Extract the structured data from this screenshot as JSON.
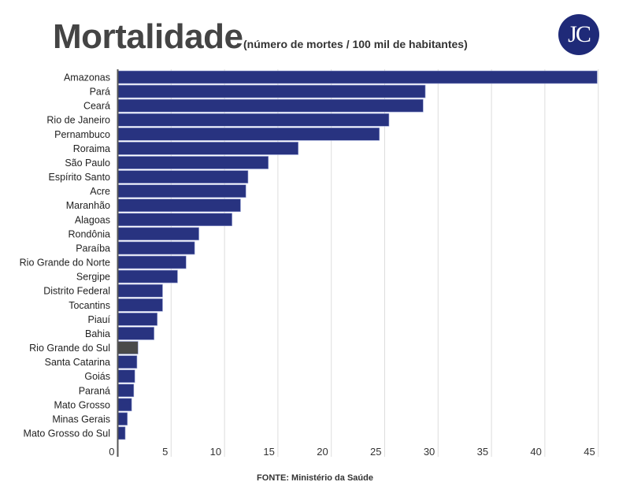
{
  "chart_data": {
    "type": "bar",
    "orientation": "horizontal",
    "title": "Mortalidade",
    "subtitle": "(número de mortes / 100 mil de habitantes)",
    "source": "FONTE: Ministério da Saúde",
    "categories": [
      "Amazonas",
      "Pará",
      "Ceará",
      "Rio de Janeiro",
      "Pernambuco",
      "Roraima",
      "São Paulo",
      "Espírito Santo",
      "Acre",
      "Maranhão",
      "Alagoas",
      "Rondônia",
      "Paraíba",
      "Rio Grande do Norte",
      "Sergipe",
      "Distrito Federal",
      "Tocantins",
      "Piauí",
      "Bahia",
      "Rio Grande do Sul",
      "Santa Catarina",
      "Goiás",
      "Paraná",
      "Mato Grosso",
      "Minas Gerais",
      "Mato Grosso do Sul"
    ],
    "values": [
      44.9,
      28.8,
      28.6,
      25.4,
      24.5,
      16.9,
      14.1,
      12.2,
      12.0,
      11.5,
      10.7,
      7.6,
      7.2,
      6.4,
      5.6,
      4.2,
      4.2,
      3.7,
      3.4,
      1.9,
      1.8,
      1.6,
      1.5,
      1.3,
      0.9,
      0.7
    ],
    "highlight": "Rio Grande do Sul",
    "xlim": [
      0,
      45
    ],
    "xticks": [
      0,
      5,
      10,
      15,
      20,
      25,
      30,
      35,
      40,
      45
    ],
    "grid": true,
    "colors": {
      "bar": "#283380",
      "highlight": "#4a4a4a",
      "grid": "#dddddd"
    }
  },
  "logo": "JC"
}
